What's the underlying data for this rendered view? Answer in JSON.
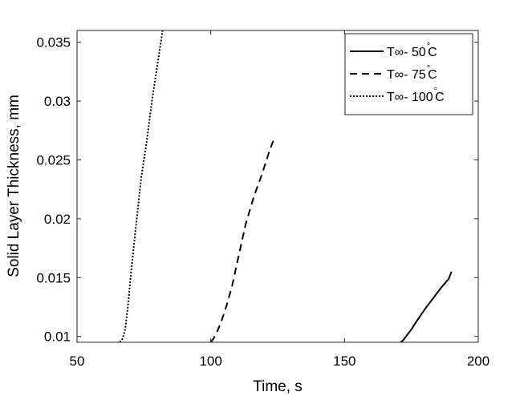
{
  "chart_data": {
    "type": "line",
    "title": "",
    "xlabel": "Time, s",
    "ylabel": "Solid Layer Thickness, mm",
    "xlim": [
      50,
      200
    ],
    "ylim": [
      0.0095,
      0.036
    ],
    "xticks": [
      50,
      100,
      150,
      200
    ],
    "xtick_labels": [
      "50",
      "100",
      "150",
      "200"
    ],
    "yticks": [
      0.01,
      0.015,
      0.02,
      0.025,
      0.03,
      0.035
    ],
    "ytick_labels": [
      "0.01",
      "0.015",
      "0.02",
      "0.025",
      "0.03",
      "0.035"
    ],
    "grid": false,
    "legend_position": "top-right",
    "series": [
      {
        "name": "T∞- 50",
        "unit_sup": "°",
        "unit": "C",
        "dash": "solid",
        "x": [
          171,
          172,
          173,
          175,
          177,
          180,
          183,
          186,
          189,
          190
        ],
        "y": [
          0.0095,
          0.0097,
          0.01,
          0.0106,
          0.0113,
          0.0123,
          0.0132,
          0.0141,
          0.0149,
          0.0155
        ]
      },
      {
        "name": "T∞- 75",
        "unit_sup": "°",
        "unit": "C",
        "dash": "dashed",
        "x": [
          100,
          101,
          102,
          104,
          106,
          108,
          110,
          113,
          116,
          119,
          122,
          124
        ],
        "y": [
          0.0095,
          0.0098,
          0.0102,
          0.0113,
          0.0127,
          0.0143,
          0.0164,
          0.0195,
          0.0218,
          0.0237,
          0.0258,
          0.027
        ]
      },
      {
        "name": "T∞- 100",
        "unit_sup": "°",
        "unit": "C",
        "dash": "dotted",
        "x": [
          66,
          67,
          68,
          69,
          70,
          72,
          74,
          76,
          78,
          80,
          82
        ],
        "y": [
          0.0095,
          0.0098,
          0.0106,
          0.0125,
          0.015,
          0.0193,
          0.0235,
          0.0265,
          0.03,
          0.033,
          0.036
        ]
      }
    ]
  }
}
